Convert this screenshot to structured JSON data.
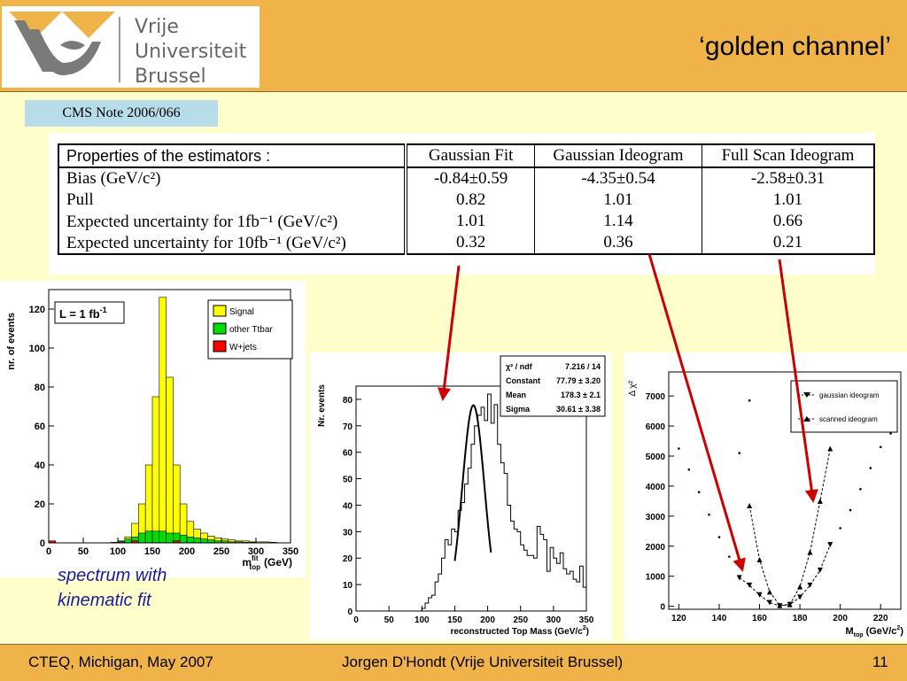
{
  "logo": {
    "words": [
      "Vrije",
      "Universiteit",
      "Brussel"
    ],
    "icon": "vub-logo-icon",
    "colors": {
      "yellow": "#F0B34A",
      "gray": "#7a7a7a"
    }
  },
  "slide_title": "‘golden channel’",
  "note_label": "CMS Note 2006/066",
  "table": {
    "header": [
      "Properties of the estimators :",
      "Gaussian Fit",
      "Gaussian Ideogram",
      "Full Scan Ideogram"
    ],
    "rows": [
      {
        "label": "Bias (GeV/c²)",
        "values": [
          "-0.84±0.59",
          "-4.35±0.54",
          "-2.58±0.31"
        ]
      },
      {
        "label": "Pull",
        "values": [
          "0.82",
          "1.01",
          "1.01"
        ]
      },
      {
        "label": "Expected uncertainty for 1fb⁻¹ (GeV/c²)",
        "values": [
          "1.01",
          "1.14",
          "0.66"
        ]
      },
      {
        "label": "Expected uncertainty for 10fb⁻¹ (GeV/c²)",
        "values": [
          "0.32",
          "0.36",
          "0.21"
        ]
      }
    ]
  },
  "caption": [
    "spectrum with",
    "kinematic fit"
  ],
  "footer": {
    "left": "CTEQ, Michigan, May 2007",
    "center": "Jorgen D'Hondt  (Vrije Universiteit Brussel)",
    "page": "11"
  },
  "chart_data": [
    {
      "type": "bar",
      "ylabel": "nr. of events",
      "xlabel_main": "m",
      "xlabel_sup": "fit",
      "xlabel_sub": "top",
      "xlabel_unit": "(GeV)",
      "annotation_main": "L = 1 fb",
      "annotation_sup": "-1",
      "xlim": [
        0,
        350
      ],
      "ylim": [
        0,
        130
      ],
      "xticks": [
        0,
        50,
        100,
        150,
        200,
        250,
        300,
        350
      ],
      "yticks": [
        0,
        20,
        40,
        60,
        80,
        100,
        120
      ],
      "bin_width": 10,
      "x": [
        0,
        10,
        20,
        30,
        40,
        50,
        60,
        70,
        80,
        90,
        100,
        110,
        120,
        130,
        140,
        150,
        160,
        170,
        180,
        190,
        200,
        210,
        220,
        230,
        240,
        250,
        260,
        270,
        280,
        290,
        300,
        310,
        320,
        330,
        340
      ],
      "series": [
        {
          "name": "Signal",
          "color": "#FFFF00",
          "values": [
            0,
            0,
            0,
            0,
            0,
            0,
            0,
            0,
            0,
            0.3,
            1,
            3,
            10,
            20,
            40,
            75,
            126,
            85,
            40,
            20,
            11,
            7,
            5,
            3.5,
            2.5,
            2,
            1.5,
            1,
            1,
            0.5,
            0.5,
            0.5,
            0.3,
            0,
            0
          ]
        },
        {
          "name": "other Ttbar",
          "color": "#00DD00",
          "values": [
            0,
            0,
            0,
            0,
            0,
            0,
            0,
            0,
            0,
            0,
            1,
            2,
            3,
            5,
            6,
            6,
            6,
            5,
            5,
            4,
            3,
            2.5,
            2,
            1.5,
            1,
            1,
            0.5,
            0.5,
            0.3,
            0.3,
            0,
            0,
            0,
            0,
            0
          ]
        },
        {
          "name": "W+jets",
          "color": "#FF0000",
          "values": [
            1,
            0,
            0,
            0,
            0,
            0,
            0,
            0,
            0,
            0,
            0.5,
            0,
            1,
            0,
            0,
            0,
            0,
            0,
            1,
            0,
            0,
            0,
            0,
            0,
            0,
            0,
            0,
            0,
            0,
            0,
            0,
            0,
            0,
            0,
            0
          ]
        }
      ],
      "legend_position": "top-right"
    },
    {
      "type": "bar",
      "ylabel": "Nr. events",
      "xlabel_main": "reconstructed Top Mass (GeV/c",
      "xlabel_sup": "2",
      "xlabel_end": ")",
      "xlim": [
        0,
        350
      ],
      "ylim": [
        0,
        85
      ],
      "xticks": [
        0,
        50,
        100,
        150,
        200,
        250,
        300,
        350
      ],
      "yticks": [
        0,
        10,
        20,
        30,
        40,
        50,
        60,
        70,
        80
      ],
      "bin_width": 5,
      "x_start": 100,
      "values": [
        1,
        3,
        5,
        6,
        11,
        14,
        20,
        27,
        25,
        31,
        30,
        38,
        41,
        48,
        54,
        63,
        70,
        74,
        77,
        72,
        82,
        71,
        78,
        63,
        56,
        52,
        40,
        34,
        31,
        30,
        25,
        23,
        21,
        21,
        20,
        32,
        29,
        27,
        15,
        24,
        20,
        18,
        22,
        16,
        14,
        15,
        12,
        11,
        17,
        9
      ],
      "fit": {
        "name": "Gaussian fit",
        "mean": 178.3,
        "sigma": 30.61,
        "constant": 77.79,
        "range": [
          150,
          205
        ]
      },
      "stats": [
        {
          "label": "χ² / ndf",
          "value": "7.216 / 14"
        },
        {
          "label": "Constant",
          "value": "77.79 ± 3.20"
        },
        {
          "label": "Mean",
          "value": "178.3 ± 2.1"
        },
        {
          "label": "Sigma",
          "value": "30.61 ± 3.38"
        }
      ],
      "legend_position": "top-right"
    },
    {
      "type": "scatter",
      "ylabel": "Δ χ²",
      "xlabel_main": "M",
      "xlabel_sub": "top",
      "xlabel_unit": "(GeV/c",
      "xlabel_sup": "2",
      "xlabel_end": ")",
      "xlim": [
        115,
        230
      ],
      "ylim": [
        -100,
        7800
      ],
      "xticks": [
        120,
        140,
        160,
        180,
        200,
        220
      ],
      "yticks": [
        0,
        1000,
        2000,
        3000,
        4000,
        5000,
        6000,
        7000
      ],
      "series": [
        {
          "name": "gaussian ideogram",
          "marker": "triangle-down",
          "x": [
            150,
            155,
            160,
            165,
            170,
            175,
            180,
            185,
            190,
            195
          ],
          "y": [
            950,
            700,
            380,
            120,
            10,
            60,
            300,
            700,
            1200,
            2050
          ]
        },
        {
          "name": "scanned ideogram",
          "marker": "triangle-up",
          "x": [
            155,
            160,
            165,
            170,
            175,
            180,
            185,
            190,
            195
          ],
          "y": [
            3350,
            1550,
            480,
            30,
            60,
            650,
            1800,
            3500,
            5250
          ]
        },
        {
          "name": "dots",
          "marker": "dot",
          "x": [
            120,
            125,
            130,
            135,
            140,
            145,
            150,
            155,
            200,
            205,
            210,
            215,
            220,
            225
          ],
          "y": [
            5250,
            4550,
            3800,
            3050,
            2300,
            1650,
            5100,
            6850,
            2600,
            3200,
            3900,
            4600,
            5300,
            5750
          ]
        }
      ],
      "legend_position": "top-right"
    }
  ]
}
